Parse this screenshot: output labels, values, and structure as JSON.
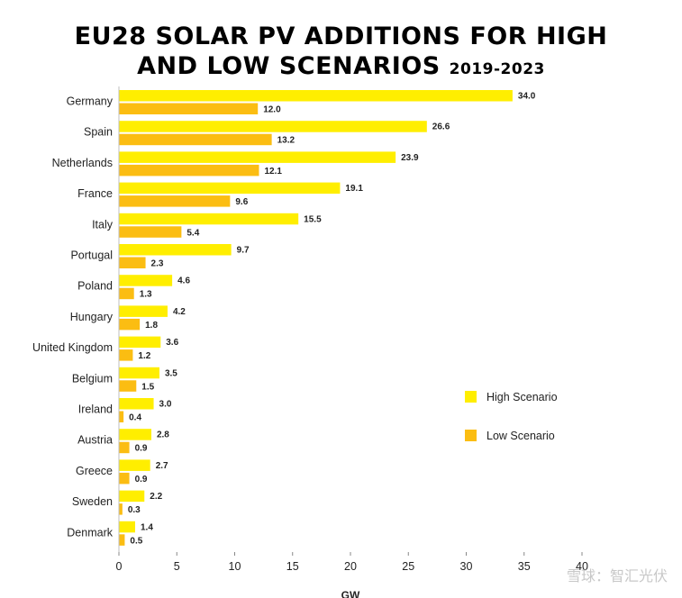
{
  "title": {
    "line1": "EU28 SOLAR PV ADDITIONS FOR HIGH",
    "line2": "AND LOW SCENARIOS",
    "years": "2019-2023"
  },
  "watermark": "雪球：智汇光伏",
  "colors": {
    "high": "#ffee00",
    "low": "#fbbd12"
  },
  "chart_data": {
    "type": "bar",
    "orientation": "horizontal",
    "categories": [
      "Germany",
      "Spain",
      "Netherlands",
      "France",
      "Italy",
      "Portugal",
      "Poland",
      "Hungary",
      "United Kingdom",
      "Belgium",
      "Ireland",
      "Austria",
      "Greece",
      "Sweden",
      "Denmark"
    ],
    "series": [
      {
        "name": "High Scenario",
        "values": [
          34.0,
          26.6,
          23.9,
          19.1,
          15.5,
          9.7,
          4.6,
          4.2,
          3.6,
          3.5,
          3.0,
          2.8,
          2.7,
          2.2,
          1.4
        ],
        "labels": [
          "34.0",
          "26.6",
          "23.9",
          "19.1",
          "15.5",
          "9.7",
          "4.6",
          "4.2",
          "3.6",
          "3.5",
          "3.0",
          "2.8",
          "2.7",
          "2.2",
          "1.4"
        ]
      },
      {
        "name": "Low Scenario",
        "values": [
          12.0,
          13.2,
          12.1,
          9.6,
          5.4,
          2.3,
          1.3,
          1.8,
          1.2,
          1.5,
          0.4,
          0.9,
          0.9,
          0.3,
          0.5
        ],
        "labels": [
          "12.0",
          "13.2",
          "12.1",
          "9.6",
          "5.4",
          "2.3",
          "1.3",
          "1.8",
          "1.2",
          "1.5",
          "0.4",
          "0.9",
          "0.9",
          "0.3",
          "0.5"
        ]
      }
    ],
    "xlabel": "GW",
    "xlim": [
      0,
      40
    ],
    "xticks": [
      "0",
      "5",
      "10",
      "15",
      "20",
      "25",
      "30",
      "35",
      "40"
    ],
    "grid": false,
    "legend_position": "right"
  }
}
